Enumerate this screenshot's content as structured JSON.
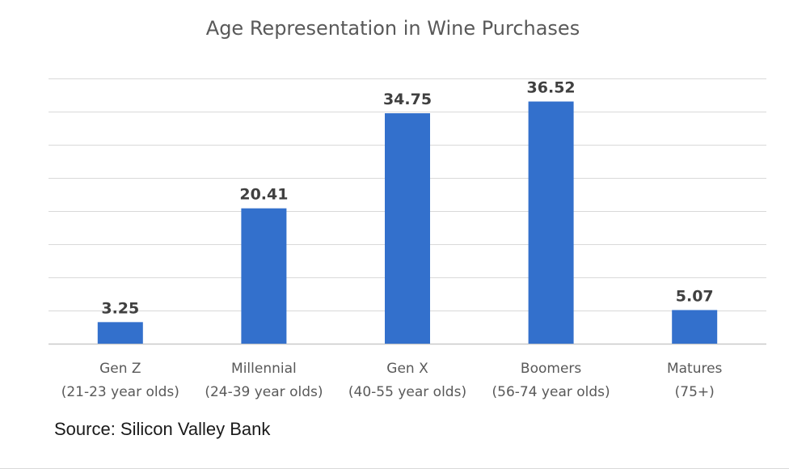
{
  "chart_data": {
    "type": "bar",
    "title": "Age Representation in Wine Purchases",
    "categories": [
      [
        "Gen Z",
        "(21-23 year olds)"
      ],
      [
        "Millennial",
        "(24-39 year olds)"
      ],
      [
        "Gen X",
        "(40-55 year olds)"
      ],
      [
        "Boomers",
        "(56-74 year olds)"
      ],
      [
        "Matures",
        "(75+)"
      ]
    ],
    "values": [
      3.25,
      20.41,
      34.75,
      36.52,
      5.07
    ],
    "data_labels": [
      "3.25",
      "20.41",
      "34.75",
      "36.52",
      "5.07"
    ],
    "xlabel": "",
    "ylabel": "",
    "ylim": [
      0,
      40
    ],
    "grid": true,
    "show_y_tick_labels": false,
    "legend": "none",
    "bar_color": "#3370cc",
    "grid_color": "#d9d9d9"
  },
  "source": "Source: Silicon Valley Bank"
}
